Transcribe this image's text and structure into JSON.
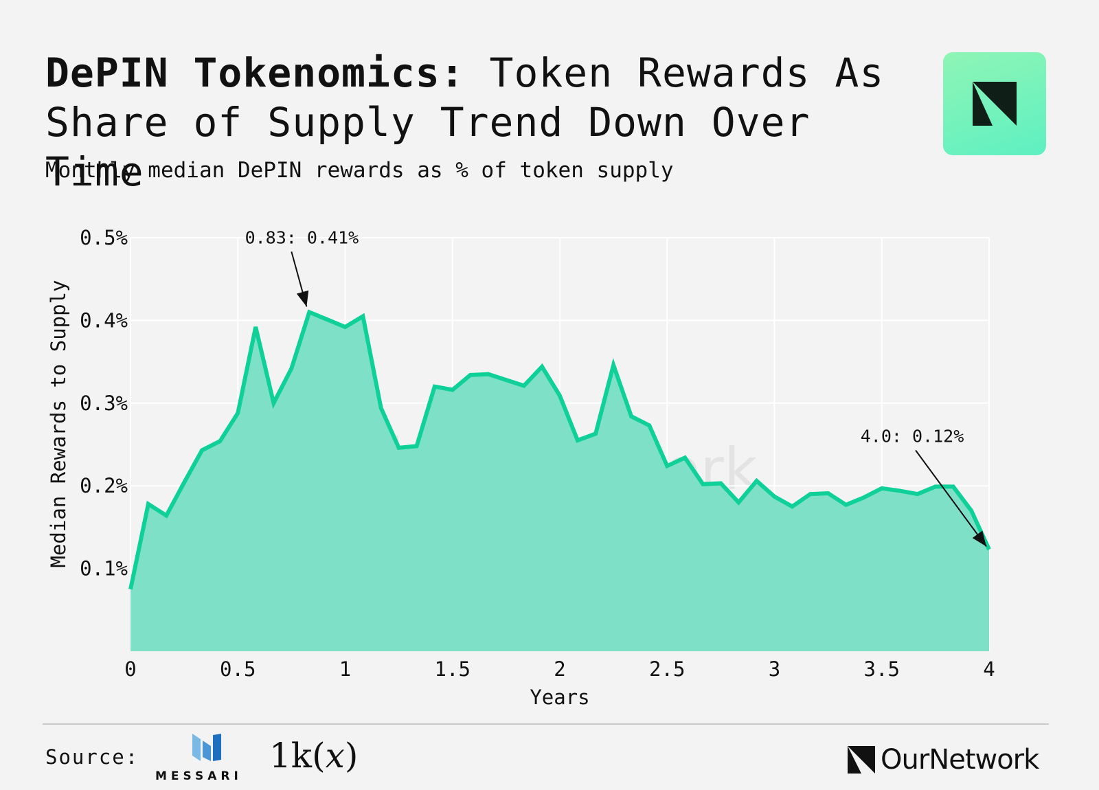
{
  "header": {
    "title_bold": "DePIN Tokenomics:",
    "title_rest": "Token Rewards As Share of Supply Trend Down Over Time",
    "subtitle": "Monthly median DePIN rewards as % of token supply"
  },
  "footer": {
    "source_label": "Source:",
    "messari_word": "MESSARI",
    "onek_text": "1k(",
    "onek_x": "x",
    "onek_close": ")",
    "ournetwork_word": "OurNetwork"
  },
  "watermark": "OurNetwork",
  "colors": {
    "line": "#10d09a",
    "fill": "#7fe0c8",
    "background": "#f3f3f3",
    "grid": "#ffffff",
    "text": "#111111"
  },
  "icons": {
    "brand_tile": "ournetwork-logo-icon",
    "messari": "messari-logo-icon"
  },
  "chart_data": {
    "type": "area",
    "xlabel": "Years",
    "ylabel": "Median Rewards to Supply",
    "xlim": [
      0,
      4
    ],
    "ylim": [
      0,
      0.5
    ],
    "x_ticks": [
      0,
      0.5,
      1,
      1.5,
      2,
      2.5,
      3,
      3.5,
      4
    ],
    "x_tick_labels": [
      "0",
      "0.5",
      "1",
      "1.5",
      "2",
      "2.5",
      "3",
      "3.5",
      "4"
    ],
    "y_ticks": [
      0.1,
      0.2,
      0.3,
      0.4,
      0.5
    ],
    "y_tick_labels": [
      "0.1%",
      "0.2%",
      "0.3%",
      "0.4%",
      "0.5%"
    ],
    "grid": true,
    "series": [
      {
        "x": [
          0,
          0.083,
          0.167,
          0.25,
          0.333,
          0.417,
          0.5,
          0.583,
          0.667,
          0.75,
          0.833,
          0.917,
          1.0,
          1.083,
          1.167,
          1.25,
          1.333,
          1.417,
          1.5,
          1.583,
          1.667,
          1.75,
          1.833,
          1.917,
          2.0,
          2.083,
          2.167,
          2.25,
          2.333,
          2.417,
          2.5,
          2.583,
          2.667,
          2.75,
          2.833,
          2.917,
          3.0,
          3.083,
          3.167,
          3.25,
          3.333,
          3.417,
          3.5,
          3.583,
          3.667,
          3.75,
          3.833,
          3.917,
          4.0
        ],
        "y": [
          0.075,
          0.178,
          0.164,
          0.204,
          0.243,
          0.254,
          0.288,
          0.392,
          0.3,
          0.342,
          0.41,
          0.401,
          0.392,
          0.405,
          0.294,
          0.246,
          0.248,
          0.32,
          0.316,
          0.334,
          0.335,
          0.328,
          0.321,
          0.344,
          0.309,
          0.255,
          0.263,
          0.346,
          0.284,
          0.273,
          0.224,
          0.234,
          0.202,
          0.203,
          0.18,
          0.206,
          0.187,
          0.175,
          0.19,
          0.191,
          0.177,
          0.186,
          0.197,
          0.194,
          0.19,
          0.199,
          0.199,
          0.17,
          0.123
        ]
      }
    ],
    "annotations": [
      {
        "text": "0.83: 0.41%",
        "x": 0.83,
        "y": 0.41
      },
      {
        "text": "4.0: 0.12%",
        "x": 4.0,
        "y": 0.12
      }
    ]
  }
}
